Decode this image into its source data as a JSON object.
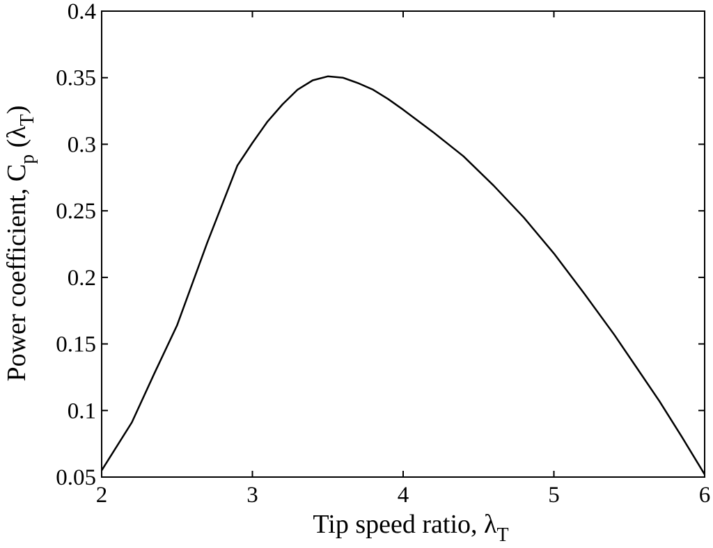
{
  "chart_data": {
    "type": "line",
    "title": "",
    "xlabel": {
      "text": "Tip speed ratio, ",
      "symbol": "λ",
      "subscript": "T"
    },
    "ylabel": {
      "text": "Power coefficient, C",
      "subscript_p": "p",
      "open": " (",
      "symbol": "λ",
      "subscript_t": "T",
      "close": ")"
    },
    "xlim": [
      2,
      6
    ],
    "ylim": [
      0.05,
      0.4
    ],
    "xticks": [
      2,
      3,
      4,
      5,
      6
    ],
    "xtick_labels": [
      "2",
      "3",
      "4",
      "5",
      "6"
    ],
    "yticks": [
      0.05,
      0.1,
      0.15,
      0.2,
      0.25,
      0.3,
      0.35,
      0.4
    ],
    "ytick_labels": [
      "0.05",
      "0.1",
      "0.15",
      "0.2",
      "0.25",
      "0.3",
      "0.35",
      "0.4"
    ],
    "grid": false,
    "legend": "none",
    "line_color": "#000000",
    "series": [
      {
        "x": [
          2.0,
          2.2,
          2.35,
          2.5,
          2.7,
          2.9,
          3.0,
          3.1,
          3.2,
          3.3,
          3.4,
          3.5,
          3.6,
          3.7,
          3.8,
          3.9,
          4.0,
          4.2,
          4.4,
          4.6,
          4.8,
          5.0,
          5.2,
          5.4,
          5.55,
          5.7,
          5.85,
          6.0
        ],
        "y": [
          0.055,
          0.091,
          0.128,
          0.164,
          0.226,
          0.284,
          0.301,
          0.317,
          0.33,
          0.341,
          0.348,
          0.351,
          0.35,
          0.346,
          0.341,
          0.334,
          0.326,
          0.309,
          0.291,
          0.269,
          0.245,
          0.218,
          0.188,
          0.157,
          0.132,
          0.107,
          0.08,
          0.052
        ]
      }
    ]
  }
}
